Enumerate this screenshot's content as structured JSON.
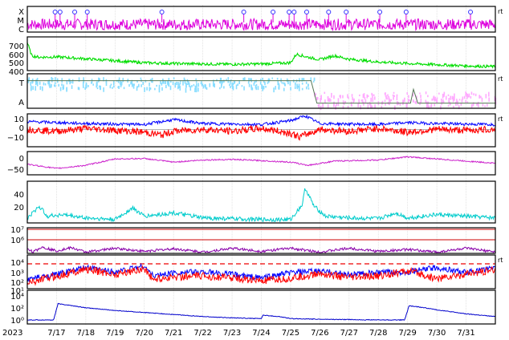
{
  "chart_data": {
    "type": "line",
    "title": "",
    "grid": true,
    "x_axis": {
      "start_label": "2023",
      "ticks": [
        "7/17",
        "7/18",
        "7/19",
        "7/20",
        "7/21",
        "7/22",
        "7/23",
        "7/24",
        "7/25",
        "7/26",
        "7/27",
        "7/28",
        "7/29",
        "7/30",
        "7/31"
      ],
      "range_days": [
        0,
        16
      ]
    },
    "panels": [
      {
        "id": "xray",
        "labels": [
          "X",
          "M",
          "C"
        ],
        "marker": "rt",
        "colors": {
          "line": "#dd00dd",
          "flare": "#3333ff"
        },
        "flare_days": [
          0.95,
          1.12,
          1.62,
          2.05,
          4.6,
          7.4,
          8.4,
          8.95,
          9.12,
          9.55,
          10.3,
          10.9,
          12.05,
          12.95,
          15.15
        ]
      },
      {
        "id": "solar-wind-speed",
        "ticks": [
          "700",
          "600",
          "500",
          "400"
        ],
        "ylim": [
          330,
          760
        ],
        "colors": {
          "line": "#00dd00"
        },
        "points": [
          [
            0,
            690
          ],
          [
            0.15,
            520
          ],
          [
            0.4,
            500
          ],
          [
            1,
            505
          ],
          [
            2,
            480
          ],
          [
            3,
            455
          ],
          [
            4,
            430
          ],
          [
            5,
            420
          ],
          [
            6,
            415
          ],
          [
            7,
            410
          ],
          [
            8,
            415
          ],
          [
            9,
            430
          ],
          [
            9.2,
            540
          ],
          [
            9.6,
            500
          ],
          [
            10,
            470
          ],
          [
            10.5,
            520
          ],
          [
            11,
            475
          ],
          [
            12,
            440
          ],
          [
            13,
            420
          ],
          [
            14,
            405
          ],
          [
            15,
            390
          ],
          [
            16,
            380
          ]
        ]
      },
      {
        "id": "imf-sector",
        "labels": [
          "T",
          "A"
        ],
        "marker": "rt",
        "colors": {
          "t": "#88ddff",
          "a": "#ffaaff",
          "line": "#557755"
        },
        "steps": [
          [
            0,
            0.8
          ],
          [
            9.7,
            0.8
          ],
          [
            9.9,
            0.15
          ],
          [
            13.1,
            0.15
          ],
          [
            13.2,
            0.55
          ],
          [
            13.35,
            0.15
          ],
          [
            14.2,
            0.15
          ],
          [
            16,
            0.15
          ]
        ]
      },
      {
        "id": "imf-bz-bt",
        "ticks": [
          "10",
          "0",
          "−10"
        ],
        "ylim": [
          -18,
          16
        ],
        "marker": "rt",
        "colors": {
          "bt": "#0000ff",
          "bz": "#ff0000"
        },
        "bt_points": [
          [
            0,
            8
          ],
          [
            2,
            6
          ],
          [
            4,
            5
          ],
          [
            5,
            10
          ],
          [
            6,
            6
          ],
          [
            8,
            5
          ],
          [
            9,
            9
          ],
          [
            9.5,
            14
          ],
          [
            10,
            6
          ],
          [
            12,
            5
          ],
          [
            13,
            7
          ],
          [
            14,
            6
          ],
          [
            16,
            5
          ]
        ],
        "bz_points": [
          [
            0,
            0
          ],
          [
            1,
            -2
          ],
          [
            2,
            1
          ],
          [
            3,
            -1
          ],
          [
            4,
            -3
          ],
          [
            4.6,
            -6
          ],
          [
            5,
            -2
          ],
          [
            6,
            0
          ],
          [
            7,
            -2
          ],
          [
            8,
            1
          ],
          [
            9,
            -4
          ],
          [
            9.3,
            -8
          ],
          [
            10,
            0
          ],
          [
            11,
            -2
          ],
          [
            12,
            1
          ],
          [
            13,
            -3
          ],
          [
            14,
            0
          ],
          [
            15,
            -1
          ],
          [
            16,
            0
          ]
        ]
      },
      {
        "id": "dst",
        "ticks": [
          "0",
          "−50"
        ],
        "ylim": [
          -85,
          25
        ],
        "colors": {
          "line": "#cc22cc"
        },
        "points": [
          [
            0,
            -35
          ],
          [
            1,
            -55
          ],
          [
            2,
            -40
          ],
          [
            3,
            -10
          ],
          [
            4,
            -8
          ],
          [
            5,
            -25
          ],
          [
            6,
            -15
          ],
          [
            7,
            -12
          ],
          [
            8,
            -18
          ],
          [
            9,
            -25
          ],
          [
            9.6,
            -40
          ],
          [
            10.5,
            -20
          ],
          [
            12,
            -15
          ],
          [
            13,
            0
          ],
          [
            14,
            -10
          ],
          [
            15,
            -20
          ],
          [
            16,
            -30
          ]
        ]
      },
      {
        "id": "kp-ae",
        "ticks": [
          "40",
          "20"
        ],
        "ylim": [
          0,
          50
        ],
        "colors": {
          "line": "#00cccc"
        },
        "points": [
          [
            0,
            5
          ],
          [
            0.4,
            20
          ],
          [
            0.7,
            8
          ],
          [
            1.2,
            10
          ],
          [
            2,
            6
          ],
          [
            3,
            4
          ],
          [
            3.6,
            18
          ],
          [
            4,
            8
          ],
          [
            5,
            12
          ],
          [
            6,
            6
          ],
          [
            7,
            5
          ],
          [
            8,
            4
          ],
          [
            9,
            4
          ],
          [
            9.4,
            22
          ],
          [
            9.5,
            42
          ],
          [
            9.8,
            20
          ],
          [
            10.2,
            8
          ],
          [
            11,
            6
          ],
          [
            12,
            5
          ],
          [
            12.6,
            12
          ],
          [
            13,
            6
          ],
          [
            14,
            10
          ],
          [
            15,
            8
          ],
          [
            16,
            6
          ]
        ]
      },
      {
        "id": "proton-flux",
        "ticks": [
          "10⁷",
          "10⁶"
        ],
        "ylim": [
          0,
          1
        ],
        "colors": {
          "line": "#8800aa",
          "threshold": "#cc0000"
        },
        "points": [
          [
            0,
            0.2
          ],
          [
            0.2,
            0.05
          ],
          [
            0.5,
            0.25
          ],
          [
            1,
            0.1
          ],
          [
            1.5,
            0.22
          ],
          [
            2,
            0.05
          ],
          [
            3,
            0.2
          ],
          [
            4,
            0.08
          ],
          [
            5,
            0.18
          ],
          [
            6,
            0.05
          ],
          [
            7,
            0.2
          ],
          [
            8,
            0.08
          ],
          [
            9,
            0.2
          ],
          [
            10,
            0.05
          ],
          [
            11,
            0.2
          ],
          [
            12,
            0.08
          ],
          [
            13,
            0.15
          ],
          [
            14,
            0.05
          ],
          [
            15,
            0.2
          ],
          [
            16,
            0.05
          ]
        ]
      },
      {
        "id": "electron-flux",
        "ticks": [
          "10⁴",
          "10³",
          "10²",
          "10¹"
        ],
        "ylim": [
          0.5,
          4.5
        ],
        "marker": "rt",
        "colors": {
          "ch1": "#0000ff",
          "ch2": "#ff0000",
          "threshold": "#ee0000"
        },
        "ch1_points": [
          [
            0,
            1.6
          ],
          [
            1,
            2.2
          ],
          [
            2,
            3
          ],
          [
            3,
            2.5
          ],
          [
            4,
            3.2
          ],
          [
            4.3,
            2
          ],
          [
            5,
            2.4
          ],
          [
            6,
            2.5
          ],
          [
            7,
            2.2
          ],
          [
            8,
            1.8
          ],
          [
            9,
            2.4
          ],
          [
            10,
            2.6
          ],
          [
            11,
            2.2
          ],
          [
            12,
            2.4
          ],
          [
            13,
            2.5
          ],
          [
            14,
            3
          ],
          [
            15,
            2.4
          ],
          [
            16,
            3
          ]
        ],
        "ch2_points": [
          [
            0,
            1.2
          ],
          [
            1,
            2
          ],
          [
            2,
            2.8
          ],
          [
            3,
            2.2
          ],
          [
            4,
            2.9
          ],
          [
            4.3,
            1.6
          ],
          [
            5,
            1.9
          ],
          [
            6,
            2
          ],
          [
            7,
            1.8
          ],
          [
            8,
            1.4
          ],
          [
            9,
            1.7
          ],
          [
            10,
            2.3
          ],
          [
            11,
            1.8
          ],
          [
            12,
            2
          ],
          [
            13,
            2.6
          ],
          [
            14,
            1.7
          ],
          [
            15,
            2.2
          ],
          [
            16,
            2.7
          ]
        ]
      },
      {
        "id": "neutron",
        "ticks": [
          "10⁴",
          "10²",
          "10⁰"
        ],
        "ylim": [
          -0.5,
          4.5
        ],
        "colors": {
          "line": "#0000cc"
        },
        "points": [
          [
            0,
            0.1
          ],
          [
            0.9,
            0.1
          ],
          [
            1.05,
            2.5
          ],
          [
            1.4,
            2.3
          ],
          [
            2,
            1.9
          ],
          [
            3,
            1.5
          ],
          [
            4,
            1.2
          ],
          [
            5,
            0.9
          ],
          [
            6,
            0.6
          ],
          [
            7,
            0.4
          ],
          [
            8,
            0.3
          ],
          [
            8.05,
            0.8
          ],
          [
            8.6,
            0.6
          ],
          [
            9,
            0.3
          ],
          [
            10,
            0.2
          ],
          [
            12,
            0.1
          ],
          [
            12.9,
            0.1
          ],
          [
            13.05,
            2.2
          ],
          [
            13.6,
            1.9
          ],
          [
            14,
            1.6
          ],
          [
            15,
            1.0
          ],
          [
            16,
            0.6
          ]
        ]
      }
    ]
  }
}
